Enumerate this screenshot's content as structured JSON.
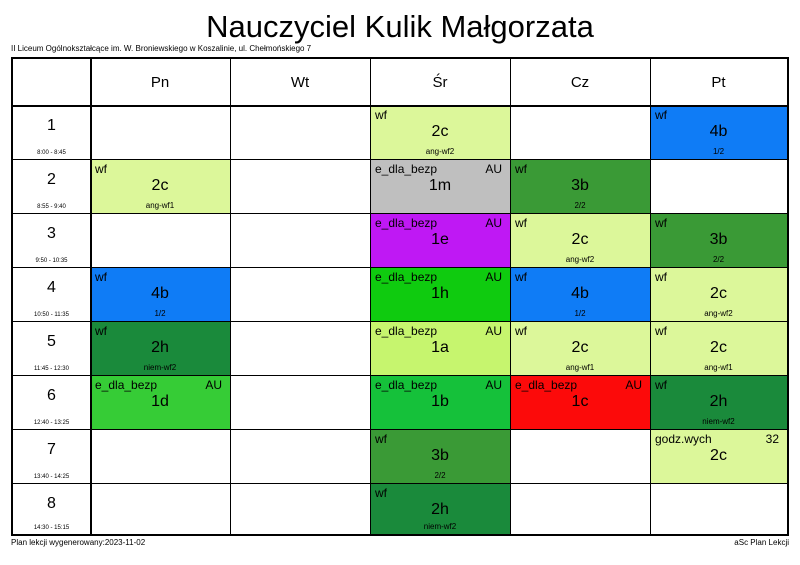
{
  "title": "Nauczyciel Kulik Małgorzata",
  "school": "II Liceum Ogólnokształcące im. W. Broniewskiego w Koszalinie, ul. Chełmońskiego 7",
  "footer": {
    "generated": "Plan lekcji wygenerowany:2023-11-02",
    "app": "aSc Plan Lekcji"
  },
  "days": [
    "Pn",
    "Wt",
    "Śr",
    "Cz",
    "Pt"
  ],
  "periods": [
    {
      "num": "1",
      "time": "8:00 - 8:45"
    },
    {
      "num": "2",
      "time": "8:55 - 9:40"
    },
    {
      "num": "3",
      "time": "9:50 - 10:35"
    },
    {
      "num": "4",
      "time": "10:50 - 11:35"
    },
    {
      "num": "5",
      "time": "11:45 - 12:30"
    },
    {
      "num": "6",
      "time": "12:40 - 13:25"
    },
    {
      "num": "7",
      "time": "13:40 - 14:25"
    },
    {
      "num": "8",
      "time": "14:30 - 15:15"
    }
  ],
  "lessons": [
    {
      "day": 2,
      "period": 0,
      "subject": "wf",
      "room": "",
      "class": "2c",
      "group": "ang-wf2",
      "color": "#dcf79a"
    },
    {
      "day": 4,
      "period": 0,
      "subject": "wf",
      "room": "",
      "class": "4b",
      "group": "1/2",
      "color": "#0f7cf6"
    },
    {
      "day": 0,
      "period": 1,
      "subject": "wf",
      "room": "",
      "class": "2c",
      "group": "ang-wf1",
      "color": "#dcf79a"
    },
    {
      "day": 2,
      "period": 1,
      "subject": "e_dla_bezp",
      "room": "AU",
      "class": "1m",
      "group": "",
      "color": "#bfbfbf"
    },
    {
      "day": 3,
      "period": 1,
      "subject": "wf",
      "room": "",
      "class": "3b",
      "group": "2/2",
      "color": "#3a9a36"
    },
    {
      "day": 2,
      "period": 2,
      "subject": "e_dla_bezp",
      "room": "AU",
      "class": "1e",
      "group": "",
      "color": "#bf18f4"
    },
    {
      "day": 3,
      "period": 2,
      "subject": "wf",
      "room": "",
      "class": "2c",
      "group": "ang-wf2",
      "color": "#dcf79a"
    },
    {
      "day": 4,
      "period": 2,
      "subject": "wf",
      "room": "",
      "class": "3b",
      "group": "2/2",
      "color": "#3a9a36"
    },
    {
      "day": 0,
      "period": 3,
      "subject": "wf",
      "room": "",
      "class": "4b",
      "group": "1/2",
      "color": "#0f7cf6"
    },
    {
      "day": 2,
      "period": 3,
      "subject": "e_dla_bezp",
      "room": "AU",
      "class": "1h",
      "group": "",
      "color": "#0fcb0f"
    },
    {
      "day": 3,
      "period": 3,
      "subject": "wf",
      "room": "",
      "class": "4b",
      "group": "1/2",
      "color": "#0f7cf6"
    },
    {
      "day": 4,
      "period": 3,
      "subject": "wf",
      "room": "",
      "class": "2c",
      "group": "ang-wf2",
      "color": "#dcf79a"
    },
    {
      "day": 0,
      "period": 4,
      "subject": "wf",
      "room": "",
      "class": "2h",
      "group": "niem-wf2",
      "color": "#1a8a3b"
    },
    {
      "day": 2,
      "period": 4,
      "subject": "e_dla_bezp",
      "room": "AU",
      "class": "1a",
      "group": "",
      "color": "#c6f56e"
    },
    {
      "day": 3,
      "period": 4,
      "subject": "wf",
      "room": "",
      "class": "2c",
      "group": "ang-wf1",
      "color": "#dcf79a"
    },
    {
      "day": 4,
      "period": 4,
      "subject": "wf",
      "room": "",
      "class": "2c",
      "group": "ang-wf1",
      "color": "#dcf79a"
    },
    {
      "day": 0,
      "period": 5,
      "subject": "e_dla_bezp",
      "room": "AU",
      "class": "1d",
      "group": "",
      "color": "#36cc36"
    },
    {
      "day": 2,
      "period": 5,
      "subject": "e_dla_bezp",
      "room": "AU",
      "class": "1b",
      "group": "",
      "color": "#15c13a"
    },
    {
      "day": 3,
      "period": 5,
      "subject": "e_dla_bezp",
      "room": "AU",
      "class": "1c",
      "group": "",
      "color": "#fc0a0a"
    },
    {
      "day": 4,
      "period": 5,
      "subject": "wf",
      "room": "",
      "class": "2h",
      "group": "niem-wf2",
      "color": "#1a8a3b"
    },
    {
      "day": 2,
      "period": 6,
      "subject": "wf",
      "room": "",
      "class": "3b",
      "group": "2/2",
      "color": "#3a9a36"
    },
    {
      "day": 4,
      "period": 6,
      "subject": "godz.wych",
      "room": "32",
      "class": "2c",
      "group": "",
      "color": "#dcf79a"
    },
    {
      "day": 2,
      "period": 7,
      "subject": "wf",
      "room": "",
      "class": "2h",
      "group": "niem-wf2",
      "color": "#1a8a3b"
    }
  ]
}
